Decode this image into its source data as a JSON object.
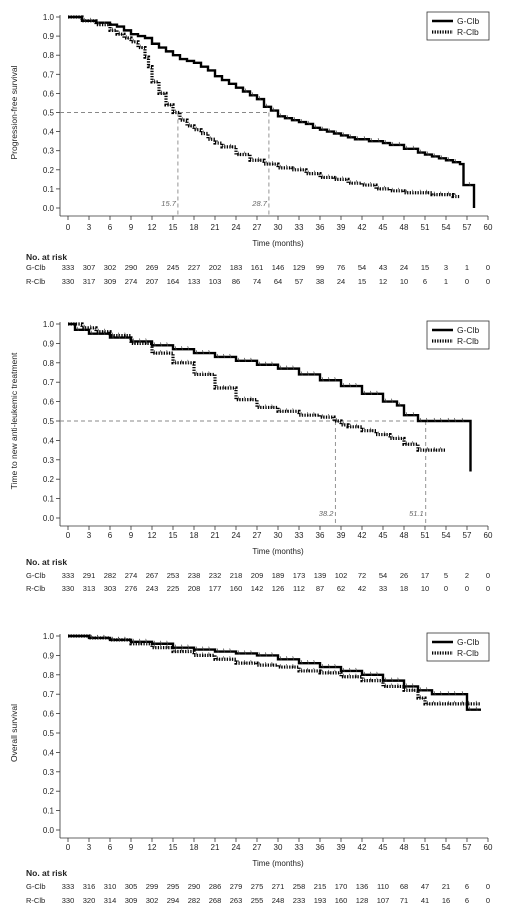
{
  "x_ticks": [
    "0",
    "3",
    "6",
    "9",
    "12",
    "15",
    "18",
    "21",
    "24",
    "27",
    "30",
    "33",
    "36",
    "39",
    "42",
    "45",
    "48",
    "51",
    "54",
    "57",
    "60"
  ],
  "y_ticks": [
    "0.0",
    "0.1",
    "0.2",
    "0.3",
    "0.4",
    "0.5",
    "0.6",
    "0.7",
    "0.8",
    "0.9",
    "1.0"
  ],
  "colors": {
    "g_clb": "#000000",
    "r_clb": "#000000",
    "median_line": "#888888"
  },
  "chart_data": [
    {
      "type": "line",
      "ylabel": "Progression-free survival",
      "xlabel": "Time (months)",
      "xlim": [
        0,
        60
      ],
      "ylim": [
        0,
        1.0
      ],
      "legend_position": "top-right",
      "legend": [
        "G-Clb",
        "R-Clb"
      ],
      "median_labels": [
        "15.7",
        "28.7"
      ],
      "medians": [
        15.7,
        28.7
      ],
      "series": [
        {
          "name": "G-Clb",
          "style": "solid",
          "x": [
            0,
            2,
            4,
            6,
            7,
            8,
            9,
            10,
            11,
            12,
            13,
            14,
            15,
            16,
            17,
            18,
            19,
            20,
            21,
            22,
            23,
            24,
            25,
            26,
            27,
            28,
            29,
            30,
            31,
            32,
            33,
            34,
            35,
            36,
            37,
            38,
            39,
            40,
            41,
            42,
            43,
            44,
            45,
            46,
            47,
            48,
            49,
            50,
            51,
            52,
            53,
            54,
            55,
            56,
            56.5,
            57,
            58
          ],
          "y": [
            1.0,
            0.98,
            0.97,
            0.96,
            0.95,
            0.93,
            0.91,
            0.9,
            0.89,
            0.86,
            0.84,
            0.82,
            0.8,
            0.78,
            0.77,
            0.76,
            0.74,
            0.72,
            0.69,
            0.67,
            0.65,
            0.63,
            0.61,
            0.59,
            0.57,
            0.53,
            0.51,
            0.48,
            0.47,
            0.46,
            0.45,
            0.44,
            0.42,
            0.41,
            0.4,
            0.39,
            0.38,
            0.37,
            0.36,
            0.36,
            0.35,
            0.35,
            0.34,
            0.33,
            0.33,
            0.31,
            0.31,
            0.29,
            0.28,
            0.27,
            0.26,
            0.25,
            0.24,
            0.23,
            0.12,
            0.12,
            0.0
          ]
        },
        {
          "name": "R-Clb",
          "style": "dotted",
          "x": [
            0,
            2,
            4,
            6,
            7,
            8,
            9,
            10,
            11,
            11.5,
            12,
            13,
            14,
            15,
            16,
            17,
            18,
            19,
            20,
            21,
            22,
            24,
            26,
            28,
            30,
            32,
            34,
            36,
            38,
            40,
            42,
            44,
            46,
            48,
            50,
            52,
            54,
            55,
            56
          ],
          "y": [
            1.0,
            0.98,
            0.96,
            0.93,
            0.91,
            0.89,
            0.87,
            0.84,
            0.79,
            0.74,
            0.66,
            0.6,
            0.54,
            0.5,
            0.46,
            0.43,
            0.41,
            0.39,
            0.36,
            0.34,
            0.32,
            0.28,
            0.25,
            0.23,
            0.21,
            0.2,
            0.18,
            0.16,
            0.15,
            0.13,
            0.12,
            0.1,
            0.09,
            0.08,
            0.08,
            0.07,
            0.07,
            0.06,
            0.06
          ]
        }
      ],
      "risk": {
        "heading": "No. at risk",
        "rows": [
          {
            "name": "G-Clb",
            "values": [
              "333",
              "307",
              "302",
              "290",
              "269",
              "245",
              "227",
              "202",
              "183",
              "161",
              "146",
              "129",
              "99",
              "76",
              "54",
              "43",
              "24",
              "15",
              "3",
              "1",
              "0"
            ]
          },
          {
            "name": "R-Clb",
            "values": [
              "330",
              "317",
              "309",
              "274",
              "207",
              "164",
              "133",
              "103",
              "86",
              "74",
              "64",
              "57",
              "38",
              "24",
              "15",
              "12",
              "10",
              "6",
              "1",
              "0",
              "0"
            ]
          }
        ]
      }
    },
    {
      "type": "line",
      "ylabel": "Time to new anti-leukemic treatment",
      "xlabel": "Time (months)",
      "xlim": [
        0,
        60
      ],
      "ylim": [
        0,
        1.0
      ],
      "legend_position": "top-right",
      "legend": [
        "G-Clb",
        "R-Clb"
      ],
      "median_labels": [
        "38.2",
        "51.1"
      ],
      "medians": [
        38.2,
        51.1
      ],
      "series": [
        {
          "name": "G-Clb",
          "style": "solid",
          "x": [
            0,
            1,
            3,
            6,
            9,
            12,
            15,
            18,
            21,
            24,
            27,
            30,
            33,
            36,
            39,
            42,
            45,
            47,
            48,
            49,
            50,
            52,
            54,
            56,
            57,
            57.5
          ],
          "y": [
            1.0,
            0.97,
            0.95,
            0.93,
            0.91,
            0.89,
            0.87,
            0.85,
            0.83,
            0.81,
            0.79,
            0.77,
            0.74,
            0.71,
            0.68,
            0.64,
            0.6,
            0.58,
            0.53,
            0.53,
            0.5,
            0.5,
            0.5,
            0.5,
            0.5,
            0.24
          ]
        },
        {
          "name": "R-Clb",
          "style": "dotted",
          "x": [
            0,
            2,
            4,
            6,
            9,
            12,
            15,
            18,
            21,
            24,
            27,
            30,
            33,
            36,
            38,
            39,
            40,
            42,
            44,
            46,
            48,
            50,
            51,
            52,
            54
          ],
          "y": [
            1.0,
            0.98,
            0.96,
            0.94,
            0.9,
            0.85,
            0.8,
            0.74,
            0.67,
            0.61,
            0.57,
            0.55,
            0.53,
            0.52,
            0.5,
            0.48,
            0.47,
            0.45,
            0.43,
            0.41,
            0.38,
            0.35,
            0.35,
            0.35,
            0.35
          ]
        }
      ],
      "risk": {
        "heading": "No. at risk",
        "rows": [
          {
            "name": "G-Clb",
            "values": [
              "333",
              "291",
              "282",
              "274",
              "267",
              "253",
              "238",
              "232",
              "218",
              "209",
              "189",
              "173",
              "139",
              "102",
              "72",
              "54",
              "26",
              "17",
              "5",
              "2",
              "0"
            ]
          },
          {
            "name": "R-Clb",
            "values": [
              "330",
              "313",
              "303",
              "276",
              "243",
              "225",
              "208",
              "177",
              "160",
              "142",
              "126",
              "112",
              "87",
              "62",
              "42",
              "33",
              "18",
              "10",
              "0",
              "0",
              "0"
            ]
          }
        ]
      }
    },
    {
      "type": "line",
      "ylabel": "Overall survival",
      "xlabel": "Time (months)",
      "xlim": [
        0,
        60
      ],
      "ylim": [
        0,
        1.0
      ],
      "legend_position": "top-right",
      "legend": [
        "G-Clb",
        "R-Clb"
      ],
      "median_labels": [],
      "medians": [],
      "series": [
        {
          "name": "G-Clb",
          "style": "solid",
          "x": [
            0,
            3,
            6,
            9,
            12,
            15,
            18,
            21,
            24,
            27,
            30,
            33,
            36,
            39,
            42,
            45,
            48,
            50,
            52,
            54,
            56,
            57,
            58,
            59
          ],
          "y": [
            1.0,
            0.99,
            0.98,
            0.97,
            0.96,
            0.94,
            0.93,
            0.92,
            0.91,
            0.9,
            0.88,
            0.86,
            0.84,
            0.82,
            0.8,
            0.77,
            0.74,
            0.72,
            0.7,
            0.7,
            0.7,
            0.62,
            0.62,
            0.62
          ]
        },
        {
          "name": "R-Clb",
          "style": "dotted",
          "x": [
            0,
            3,
            6,
            9,
            12,
            15,
            18,
            21,
            24,
            27,
            30,
            33,
            36,
            39,
            42,
            45,
            48,
            50,
            51,
            54,
            56,
            58,
            59
          ],
          "y": [
            1.0,
            0.99,
            0.98,
            0.96,
            0.94,
            0.92,
            0.9,
            0.88,
            0.86,
            0.85,
            0.84,
            0.82,
            0.81,
            0.79,
            0.77,
            0.74,
            0.72,
            0.68,
            0.65,
            0.65,
            0.65,
            0.65,
            0.65
          ]
        }
      ],
      "risk": {
        "heading": "No. at risk",
        "rows": [
          {
            "name": "G-Clb",
            "values": [
              "333",
              "316",
              "310",
              "305",
              "299",
              "295",
              "290",
              "286",
              "279",
              "275",
              "271",
              "258",
              "215",
              "170",
              "136",
              "110",
              "68",
              "47",
              "21",
              "6",
              "0"
            ]
          },
          {
            "name": "R-Clb",
            "values": [
              "330",
              "320",
              "314",
              "309",
              "302",
              "294",
              "282",
              "268",
              "263",
              "255",
              "248",
              "233",
              "193",
              "160",
              "128",
              "107",
              "71",
              "41",
              "16",
              "6",
              "0"
            ]
          }
        ]
      }
    }
  ]
}
